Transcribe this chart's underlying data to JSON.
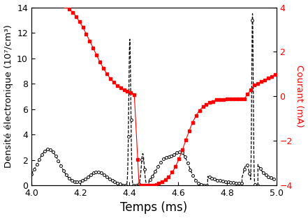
{
  "xlabel": "Temps (ms)",
  "ylabel_left": "Densité électronique (10⁷/cm³)",
  "ylabel_right": "Courant (mA)",
  "xlim": [
    4.0,
    5.0
  ],
  "ylim_left": [
    0,
    14
  ],
  "ylim_right": [
    -4,
    4
  ],
  "xticks": [
    4.0,
    4.2,
    4.4,
    4.6,
    4.8,
    5.0
  ],
  "yticks_left": [
    0,
    2,
    4,
    6,
    8,
    10,
    12,
    14
  ],
  "yticks_right": [
    -4,
    -2,
    0,
    2,
    4
  ],
  "color_black": "#000000",
  "color_red": "#ff0000",
  "xlabel_fontsize": 12,
  "ylabel_fontsize": 9.5,
  "tick_fontsize": 9
}
